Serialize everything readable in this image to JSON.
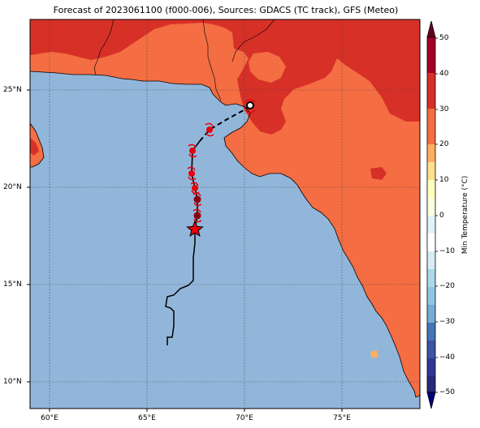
{
  "title": "Forecast of 2023061100 (f000-006), Sources: GDACS (TC track), GFS (Meteo)",
  "map": {
    "lon_ticks": [
      "60°E",
      "65°E",
      "70°E",
      "75°E"
    ],
    "lat_ticks": [
      "25°N",
      "20°N",
      "15°N",
      "10°N"
    ],
    "ocean_color": "#92b6da",
    "land_color_20_30": "#f46d43",
    "land_color_30_40": "#d73027",
    "land_color_10_20": "#fdae61"
  },
  "colorbar": {
    "label": "Min Temperature (°C)",
    "ticks": [
      "50",
      "40",
      "30",
      "20",
      "10",
      "0",
      "−10",
      "−20",
      "−30",
      "−40",
      "−50"
    ],
    "colors": [
      "#313695",
      "#4575b4",
      "#74add1",
      "#abd9e9",
      "#e0f3f8",
      "#ffffbf",
      "#fee090",
      "#fdae61",
      "#f46d43",
      "#d73027",
      "#a50026"
    ]
  },
  "track": {
    "line_color": "#000000",
    "marker_color": "#e8000b",
    "current_position_marker": "star",
    "landfall_marker": "circle"
  }
}
